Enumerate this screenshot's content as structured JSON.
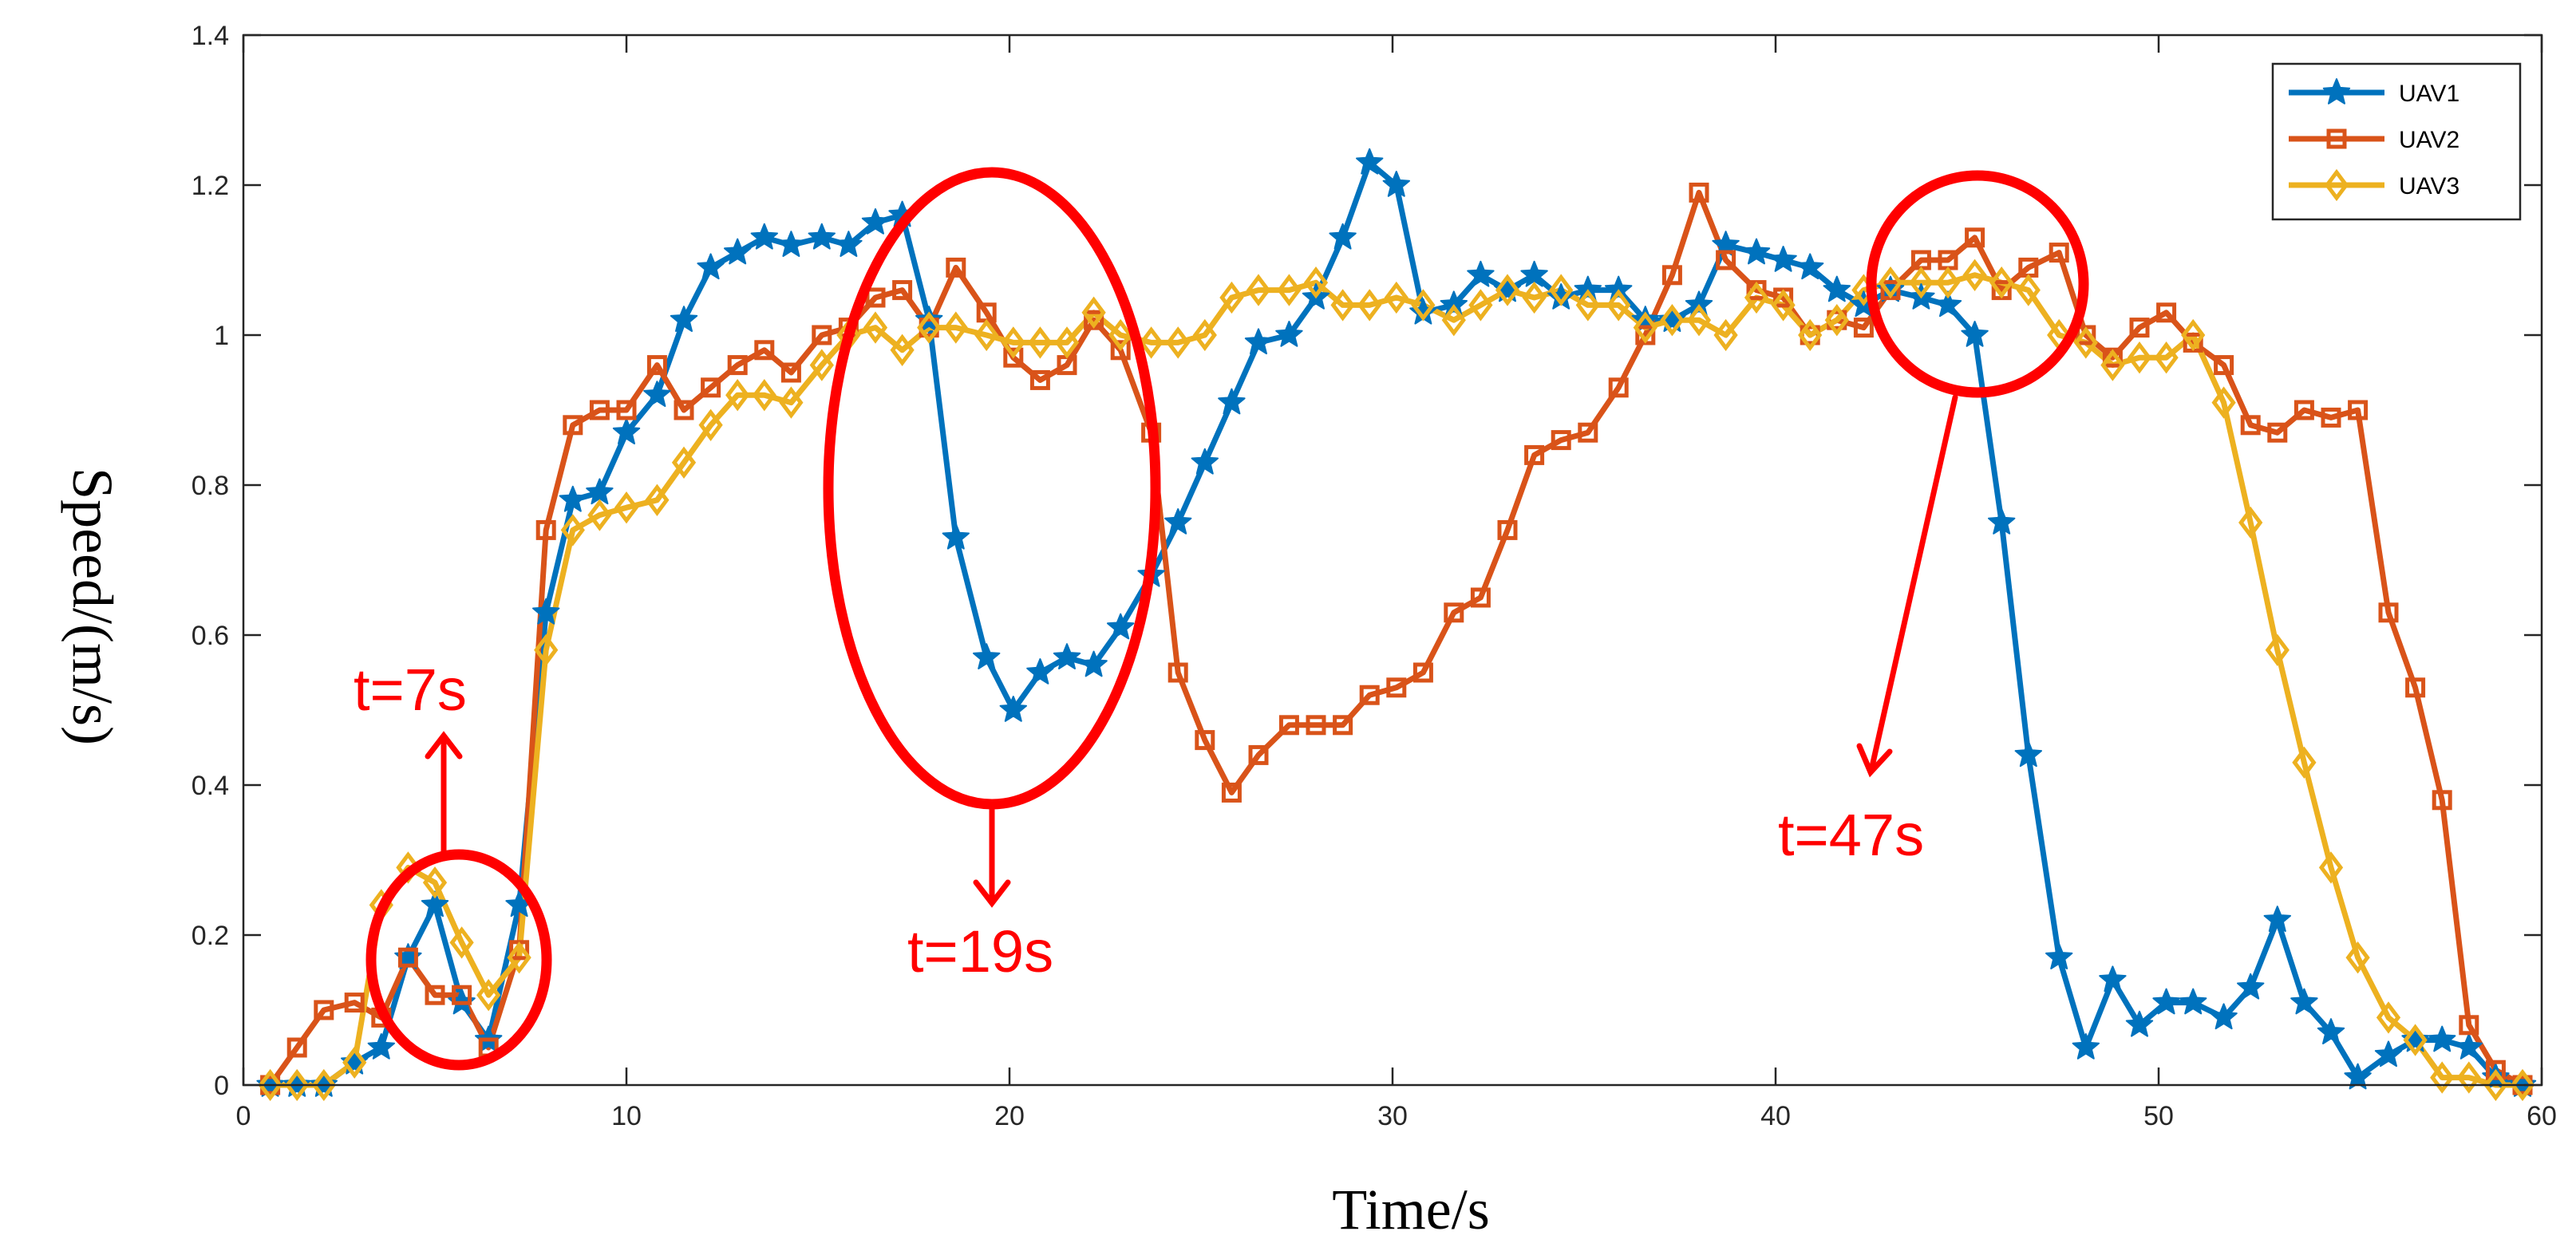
{
  "chart_data": {
    "type": "line",
    "title": "",
    "xlabel": "Time/s",
    "ylabel": "Speed/(m/s)",
    "xlim": [
      0,
      60
    ],
    "ylim": [
      0,
      1.4
    ],
    "xticks": [
      0,
      10,
      20,
      30,
      40,
      50,
      60
    ],
    "xtick_labels": [
      "0",
      "10",
      "20",
      "30",
      "40",
      "50",
      "60"
    ],
    "yticks": [
      0,
      0.2,
      0.4,
      0.6,
      0.8,
      1.0,
      1.2,
      1.4
    ],
    "ytick_labels": [
      "0",
      "0.2",
      "0.4",
      "0.6",
      "0.8",
      "1",
      "1.2",
      "1.4"
    ],
    "grid": false,
    "legend_position": "top-right",
    "series": [
      {
        "name": "UAV1",
        "color": "#0072BD",
        "marker": "star",
        "x": [
          0.7,
          1.4,
          2.1,
          2.9,
          3.6,
          4.3,
          5.0,
          5.7,
          6.4,
          7.2,
          7.9,
          8.6,
          9.3,
          10.0,
          10.8,
          11.5,
          12.2,
          12.9,
          13.6,
          14.3,
          15.1,
          15.8,
          16.5,
          17.2,
          17.9,
          18.6,
          19.4,
          20.1,
          20.8,
          21.5,
          22.2,
          22.9,
          23.7,
          24.4,
          25.1,
          25.8,
          26.5,
          27.3,
          28.0,
          28.7,
          29.4,
          30.1,
          30.8,
          31.6,
          32.3,
          33.0,
          33.7,
          34.4,
          35.1,
          35.9,
          36.6,
          37.3,
          38.0,
          38.7,
          39.5,
          40.2,
          40.9,
          41.6,
          42.3,
          43.0,
          43.8,
          44.5,
          45.2,
          45.9,
          46.6,
          47.4,
          48.1,
          48.8,
          49.5,
          50.2,
          50.9,
          51.7,
          52.4,
          53.1,
          53.8,
          54.5,
          55.2,
          56.0,
          56.7,
          57.4,
          58.1,
          58.8,
          59.5
        ],
        "y": [
          0.0,
          0.0,
          0.0,
          0.03,
          0.05,
          0.17,
          0.24,
          0.11,
          0.06,
          0.24,
          0.63,
          0.78,
          0.79,
          0.87,
          0.92,
          1.02,
          1.09,
          1.11,
          1.13,
          1.12,
          1.13,
          1.12,
          1.15,
          1.16,
          1.02,
          0.73,
          0.57,
          0.5,
          0.55,
          0.57,
          0.56,
          0.61,
          0.68,
          0.75,
          0.83,
          0.91,
          0.99,
          1.0,
          1.05,
          1.13,
          1.23,
          1.2,
          1.03,
          1.04,
          1.08,
          1.06,
          1.08,
          1.05,
          1.06,
          1.06,
          1.02,
          1.02,
          1.04,
          1.12,
          1.11,
          1.1,
          1.09,
          1.06,
          1.04,
          1.06,
          1.05,
          1.04,
          1.0,
          0.75,
          0.44,
          0.17,
          0.05,
          0.14,
          0.08,
          0.11,
          0.11,
          0.09,
          0.13,
          0.22,
          0.11,
          0.07,
          0.01,
          0.04,
          0.06,
          0.06,
          0.05,
          0.01,
          0.0
        ]
      },
      {
        "name": "UAV2",
        "color": "#D95319",
        "marker": "square",
        "x": [
          0.7,
          1.4,
          2.1,
          2.9,
          3.6,
          4.3,
          5.0,
          5.7,
          6.4,
          7.2,
          7.9,
          8.6,
          9.3,
          10.0,
          10.8,
          11.5,
          12.2,
          12.9,
          13.6,
          14.3,
          15.1,
          15.8,
          16.5,
          17.2,
          17.9,
          18.6,
          19.4,
          20.1,
          20.8,
          21.5,
          22.2,
          22.9,
          23.7,
          24.4,
          25.1,
          25.8,
          26.5,
          27.3,
          28.0,
          28.7,
          29.4,
          30.1,
          30.8,
          31.6,
          32.3,
          33.0,
          33.7,
          34.4,
          35.1,
          35.9,
          36.6,
          37.3,
          38.0,
          38.7,
          39.5,
          40.2,
          40.9,
          41.6,
          42.3,
          43.0,
          43.8,
          44.5,
          45.2,
          45.9,
          46.6,
          47.4,
          48.1,
          48.8,
          49.5,
          50.2,
          50.9,
          51.7,
          52.4,
          53.1,
          53.8,
          54.5,
          55.2,
          56.0,
          56.7,
          57.4,
          58.1,
          58.8,
          59.5
        ],
        "y": [
          0.0,
          0.05,
          0.1,
          0.11,
          0.09,
          0.17,
          0.12,
          0.12,
          0.05,
          0.18,
          0.74,
          0.88,
          0.9,
          0.9,
          0.96,
          0.9,
          0.93,
          0.96,
          0.98,
          0.95,
          1.0,
          1.01,
          1.05,
          1.06,
          1.01,
          1.09,
          1.03,
          0.97,
          0.94,
          0.96,
          1.02,
          0.98,
          0.87,
          0.55,
          0.46,
          0.39,
          0.44,
          0.48,
          0.48,
          0.48,
          0.52,
          0.53,
          0.55,
          0.63,
          0.65,
          0.74,
          0.84,
          0.86,
          0.87,
          0.93,
          1.0,
          1.08,
          1.19,
          1.1,
          1.06,
          1.05,
          1.0,
          1.02,
          1.01,
          1.06,
          1.1,
          1.1,
          1.13,
          1.06,
          1.09,
          1.11,
          1.0,
          0.97,
          1.01,
          1.03,
          0.99,
          0.96,
          0.88,
          0.87,
          0.9,
          0.89,
          0.9,
          0.63,
          0.53,
          0.38,
          0.08,
          0.02,
          0.0
        ]
      },
      {
        "name": "UAV3",
        "color": "#EDB120",
        "marker": "diamond",
        "x": [
          0.7,
          1.4,
          2.1,
          2.9,
          3.6,
          4.3,
          5.0,
          5.7,
          6.4,
          7.2,
          7.9,
          8.6,
          9.3,
          10.0,
          10.8,
          11.5,
          12.2,
          12.9,
          13.6,
          14.3,
          15.1,
          15.8,
          16.5,
          17.2,
          17.9,
          18.6,
          19.4,
          20.1,
          20.8,
          21.5,
          22.2,
          22.9,
          23.7,
          24.4,
          25.1,
          25.8,
          26.5,
          27.3,
          28.0,
          28.7,
          29.4,
          30.1,
          30.8,
          31.6,
          32.3,
          33.0,
          33.7,
          34.4,
          35.1,
          35.9,
          36.6,
          37.3,
          38.0,
          38.7,
          39.5,
          40.2,
          40.9,
          41.6,
          42.3,
          43.0,
          43.8,
          44.5,
          45.2,
          45.9,
          46.6,
          47.4,
          48.1,
          48.8,
          49.5,
          50.2,
          50.9,
          51.7,
          52.4,
          53.1,
          53.8,
          54.5,
          55.2,
          56.0,
          56.7,
          57.4,
          58.1,
          58.8,
          59.5
        ],
        "y": [
          0.0,
          0.0,
          0.0,
          0.03,
          0.24,
          0.29,
          0.27,
          0.19,
          0.12,
          0.17,
          0.58,
          0.74,
          0.76,
          0.77,
          0.78,
          0.83,
          0.88,
          0.92,
          0.92,
          0.91,
          0.96,
          1.0,
          1.01,
          0.98,
          1.01,
          1.01,
          1.0,
          0.99,
          0.99,
          0.99,
          1.03,
          1.0,
          0.99,
          0.99,
          1.0,
          1.05,
          1.06,
          1.06,
          1.07,
          1.04,
          1.04,
          1.05,
          1.04,
          1.02,
          1.04,
          1.06,
          1.05,
          1.06,
          1.04,
          1.04,
          1.01,
          1.02,
          1.02,
          1.0,
          1.05,
          1.04,
          1.0,
          1.02,
          1.06,
          1.07,
          1.07,
          1.07,
          1.08,
          1.07,
          1.06,
          1.0,
          0.99,
          0.96,
          0.97,
          0.97,
          1.0,
          0.91,
          0.75,
          0.58,
          0.43,
          0.29,
          0.17,
          0.09,
          0.06,
          0.01,
          0.01,
          0.0,
          0.0
        ]
      }
    ],
    "annotations": [
      {
        "label": "t=7s",
        "circle_center": [
          6.2,
          0.17
        ],
        "arrow_direction": "up"
      },
      {
        "label": "t=19s",
        "circle_center": [
          19.5,
          0.8
        ],
        "arrow_direction": "down"
      },
      {
        "label": "t=47s",
        "circle_center": [
          45.2,
          1.07
        ],
        "arrow_direction": "down-left"
      }
    ],
    "annotation_color": "#FF0000"
  }
}
